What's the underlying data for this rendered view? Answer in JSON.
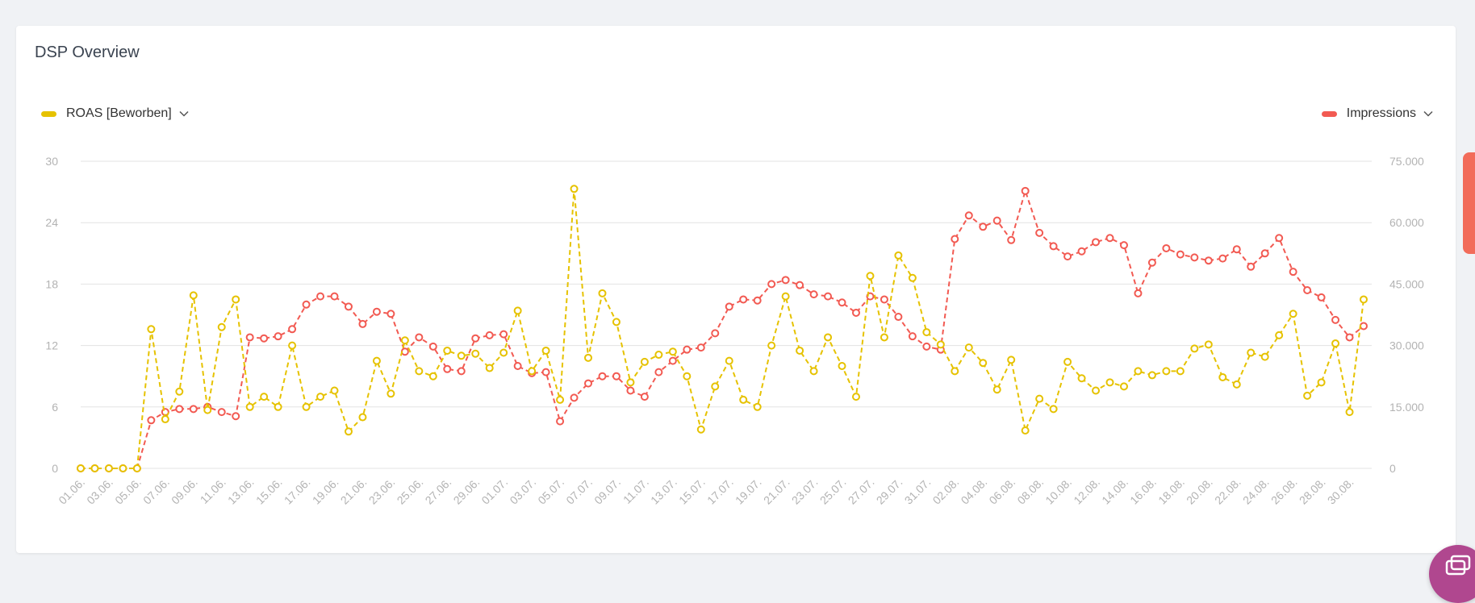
{
  "card": {
    "title": "DSP Overview"
  },
  "legend": {
    "left": {
      "label": "ROAS [Beworben]",
      "color": "#e6c200"
    },
    "right": {
      "label": "Impressions",
      "color": "#f25a52"
    }
  },
  "colors": {
    "grid": "#e3e3e3",
    "tick": "#b3b3b3",
    "side_tab": "#f26c5a",
    "fab": "#b0478f"
  },
  "icons": {
    "left_dropdown": "chevron-down-icon",
    "right_dropdown": "chevron-down-icon",
    "fab": "chat-window-icon"
  },
  "chart_data": {
    "type": "line",
    "title": "DSP Overview",
    "grid": true,
    "legend_placement": "top",
    "x_ticks": [
      "01.06.",
      "03.06.",
      "05.06.",
      "07.06.",
      "09.06.",
      "11.06.",
      "13.06.",
      "15.06.",
      "17.06.",
      "19.06.",
      "21.06.",
      "23.06.",
      "25.06.",
      "27.06.",
      "29.06.",
      "01.07.",
      "03.07.",
      "05.07.",
      "07.07.",
      "09.07.",
      "11.07.",
      "13.07.",
      "15.07.",
      "17.07.",
      "19.07.",
      "21.07.",
      "23.07.",
      "25.07.",
      "27.07.",
      "29.07.",
      "31.07.",
      "02.08.",
      "04.08.",
      "06.08.",
      "08.08.",
      "10.08.",
      "12.08.",
      "14.08.",
      "16.08.",
      "18.08.",
      "20.08.",
      "22.08.",
      "24.08.",
      "26.08.",
      "28.08.",
      "30.08."
    ],
    "y_left": {
      "ticks": [
        "0",
        "6",
        "12",
        "18",
        "24",
        "30"
      ],
      "range": [
        0,
        30
      ]
    },
    "y_right": {
      "ticks": [
        "0",
        "15.000",
        "30.000",
        "45.000",
        "60.000",
        "75.000"
      ],
      "range": [
        0,
        75000
      ]
    },
    "series": [
      {
        "name": "ROAS [Beworben]",
        "axis": "left",
        "values": [
          0,
          0,
          0,
          0,
          0,
          13.6,
          4.8,
          7.5,
          16.9,
          5.7,
          13.8,
          16.5,
          6,
          7,
          6,
          12,
          6,
          7,
          7.6,
          3.6,
          5,
          10.5,
          7.3,
          12.5,
          9.5,
          9,
          11.5,
          11,
          11.2,
          9.8,
          11.3,
          15.4,
          9.5,
          11.5,
          6.7,
          27.3,
          10.8,
          17.1,
          14.3,
          8.4,
          10.4,
          11.1,
          11.4,
          9,
          3.8,
          8,
          10.5,
          6.7,
          6,
          12,
          16.8,
          11.5,
          9.5,
          12.8,
          10,
          7,
          18.8,
          12.8,
          20.8,
          18.6,
          13.3,
          12.1,
          9.5,
          11.8,
          10.3,
          7.7,
          10.6,
          3.7,
          6.8,
          5.8,
          10.4,
          8.8,
          7.6,
          8.4,
          8,
          9.5,
          9.1,
          9.5,
          9.5,
          11.7,
          12.1,
          8.9,
          8.2,
          11.3,
          10.9,
          13,
          15.1,
          7.1,
          8.4,
          12.2,
          5.5,
          16.5
        ]
      },
      {
        "name": "Impressions",
        "axis": "right",
        "values": [
          0,
          0,
          0,
          0,
          0,
          11750,
          13750,
          14500,
          14500,
          15000,
          13750,
          12750,
          32000,
          31750,
          32250,
          34000,
          40000,
          42000,
          42000,
          39500,
          35250,
          38250,
          37750,
          28500,
          32000,
          29750,
          24250,
          23750,
          31750,
          32500,
          32750,
          25000,
          23250,
          23500,
          11500,
          17250,
          20750,
          22500,
          22500,
          19000,
          17500,
          23500,
          26250,
          29000,
          29500,
          33000,
          39500,
          41250,
          41000,
          45000,
          46000,
          44750,
          42500,
          42000,
          40500,
          38000,
          42000,
          41250,
          37000,
          32250,
          29750,
          29000,
          56000,
          61750,
          59000,
          60500,
          55750,
          67750,
          57500,
          54250,
          51750,
          53000,
          55250,
          56250,
          54500,
          42750,
          50250,
          53750,
          52250,
          51500,
          50750,
          51250,
          53500,
          49250,
          52500,
          56250,
          48000,
          43500,
          41750,
          36250,
          32000,
          34750
        ]
      }
    ]
  }
}
